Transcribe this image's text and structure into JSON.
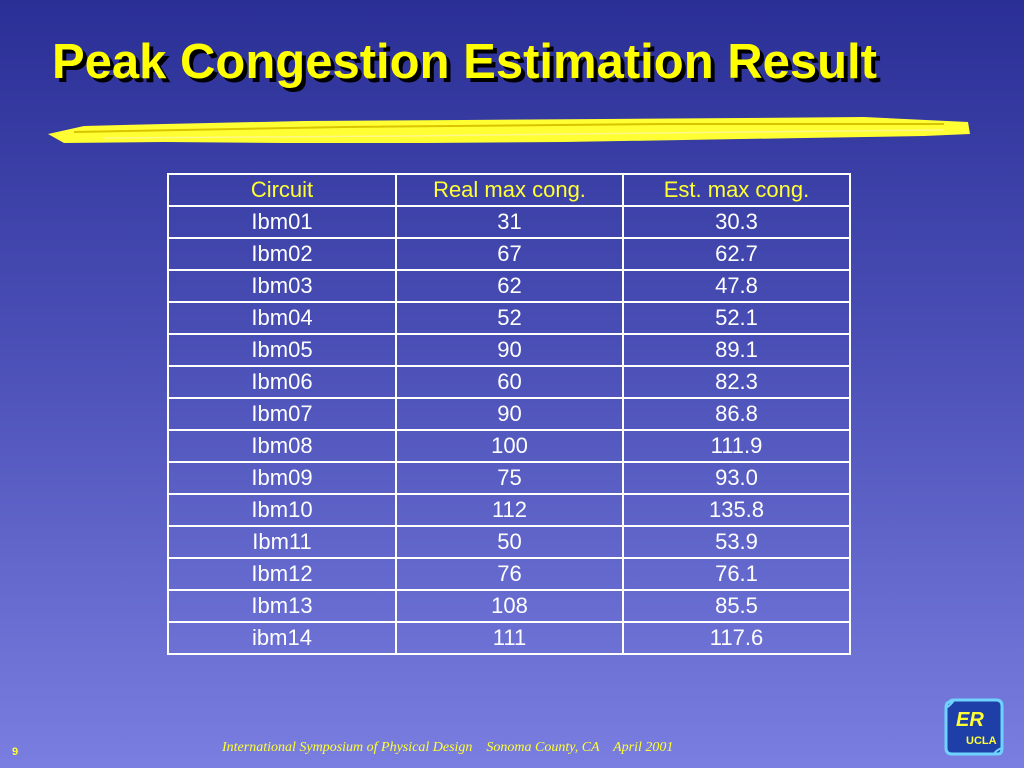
{
  "slide": {
    "title": "Peak Congestion Estimation Result",
    "page_number": "9"
  },
  "table": {
    "headers": [
      "Circuit",
      "Real max cong.",
      "Est. max cong."
    ],
    "rows": [
      [
        "Ibm01",
        "31",
        "30.3"
      ],
      [
        "Ibm02",
        "67",
        "62.7"
      ],
      [
        "Ibm03",
        "62",
        "47.8"
      ],
      [
        "Ibm04",
        "52",
        "52.1"
      ],
      [
        "Ibm05",
        "90",
        "89.1"
      ],
      [
        "Ibm06",
        "60",
        "82.3"
      ],
      [
        "Ibm07",
        "90",
        "86.8"
      ],
      [
        "Ibm08",
        "100",
        "111.9"
      ],
      [
        "Ibm09",
        "75",
        "93.0"
      ],
      [
        "Ibm10",
        "112",
        "135.8"
      ],
      [
        "Ibm11",
        "50",
        "53.9"
      ],
      [
        "Ibm12",
        "76",
        "76.1"
      ],
      [
        "Ibm13",
        "108",
        "85.5"
      ],
      [
        "ibm14",
        "111",
        "117.6"
      ]
    ]
  },
  "footer": {
    "text": "International Symposium of Physical Design    Sonoma County, CA    April 2001"
  },
  "logo": {
    "top_text": "ER",
    "bottom_text": "UCLA"
  },
  "colors": {
    "title": "#ffff00",
    "header_text": "#ffff33",
    "cell_text": "#ffffff",
    "background_top": "#2a2f96",
    "background_bottom": "#7a7ee0"
  }
}
